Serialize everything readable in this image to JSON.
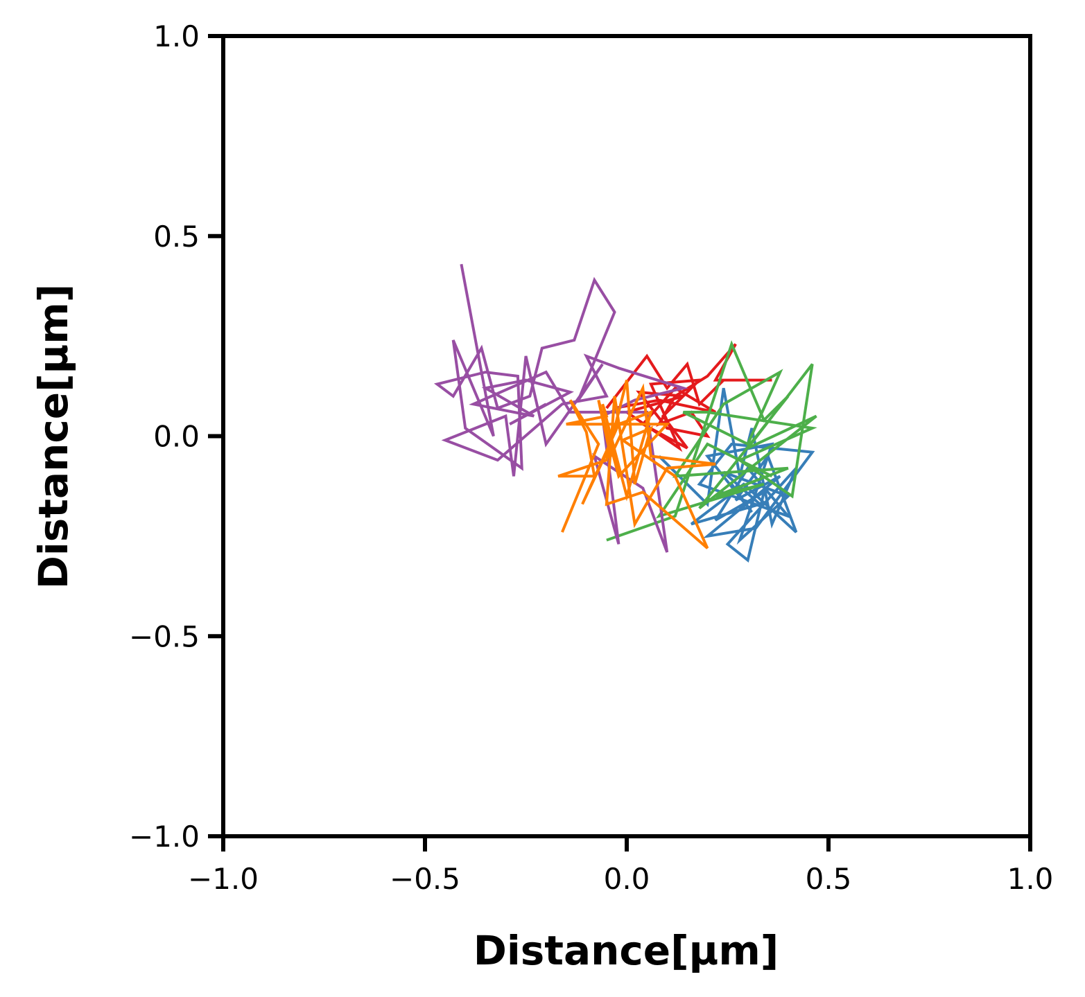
{
  "chart_data": {
    "type": "line",
    "title": "",
    "xlabel": "Distance[µm]",
    "ylabel": "Distance[µm]",
    "xlim": [
      -1.0,
      1.0
    ],
    "ylim": [
      -1.0,
      1.0
    ],
    "xticks": [
      -1.0,
      -0.5,
      0.0,
      0.5,
      1.0
    ],
    "yticks": [
      -1.0,
      -0.5,
      0.0,
      0.5,
      1.0
    ],
    "xtick_labels": [
      "−1.0",
      "−0.5",
      "0.0",
      "0.5",
      "1.0"
    ],
    "ytick_labels": [
      "−1.0",
      "−0.5",
      "0.0",
      "0.5",
      "1.0"
    ],
    "grid": false,
    "legend": "none",
    "series": [
      {
        "color": "#e41a1c",
        "points": [
          [
            -0.05,
            0.07
          ],
          [
            0.05,
            0.2
          ],
          [
            0.1,
            0.12
          ],
          [
            0.15,
            0.18
          ],
          [
            0.18,
            0.08
          ],
          [
            0.24,
            0.14
          ],
          [
            0.36,
            0.14
          ],
          [
            0.22,
            0.14
          ],
          [
            0.27,
            0.23
          ],
          [
            0.2,
            0.15
          ],
          [
            0.12,
            0.1
          ],
          [
            0.08,
            0.03
          ],
          [
            0.16,
            0.06
          ],
          [
            0.2,
            0.0
          ],
          [
            0.1,
            0.02
          ],
          [
            0.03,
            0.11
          ],
          [
            0.14,
            0.1
          ],
          [
            0.0,
            0.06
          ],
          [
            0.13,
            -0.03
          ],
          [
            0.06,
            0.13
          ],
          [
            0.18,
            0.14
          ],
          [
            0.09,
            0.05
          ],
          [
            0.15,
            -0.03
          ],
          [
            0.04,
            0.03
          ],
          [
            0.12,
            0.12
          ],
          [
            0.22,
            0.06
          ],
          [
            0.08,
            0.09
          ],
          [
            -0.03,
            0.07
          ]
        ]
      },
      {
        "color": "#377eb8",
        "points": [
          [
            0.08,
            -0.05
          ],
          [
            0.2,
            -0.17
          ],
          [
            0.24,
            0.12
          ],
          [
            0.28,
            -0.1
          ],
          [
            0.31,
            0.02
          ],
          [
            0.36,
            -0.22
          ],
          [
            0.42,
            -0.08
          ],
          [
            0.25,
            -0.27
          ],
          [
            0.3,
            -0.31
          ],
          [
            0.34,
            -0.14
          ],
          [
            0.22,
            -0.21
          ],
          [
            0.3,
            -0.08
          ],
          [
            0.4,
            -0.2
          ],
          [
            0.18,
            -0.12
          ],
          [
            0.26,
            -0.02
          ],
          [
            0.46,
            -0.04
          ],
          [
            0.32,
            -0.23
          ],
          [
            0.2,
            -0.25
          ],
          [
            0.38,
            -0.1
          ],
          [
            0.27,
            -0.16
          ],
          [
            0.35,
            -0.05
          ],
          [
            0.42,
            -0.24
          ],
          [
            0.29,
            -0.12
          ],
          [
            0.16,
            -0.22
          ],
          [
            0.33,
            -0.17
          ],
          [
            0.24,
            -0.09
          ],
          [
            0.4,
            -0.15
          ],
          [
            0.28,
            -0.26
          ],
          [
            0.36,
            -0.02
          ],
          [
            0.2,
            -0.05
          ],
          [
            0.31,
            -0.19
          ],
          [
            0.26,
            -0.12
          ]
        ]
      },
      {
        "color": "#4daf4a",
        "points": [
          [
            -0.05,
            -0.26
          ],
          [
            0.12,
            -0.2
          ],
          [
            0.26,
            0.23
          ],
          [
            0.34,
            0.04
          ],
          [
            0.4,
            0.1
          ],
          [
            0.18,
            -0.18
          ],
          [
            0.47,
            0.05
          ],
          [
            0.3,
            -0.03
          ],
          [
            0.46,
            0.18
          ],
          [
            0.41,
            -0.15
          ],
          [
            0.28,
            -0.06
          ],
          [
            0.46,
            0.02
          ],
          [
            0.2,
            0.06
          ],
          [
            0.14,
            0.06
          ],
          [
            0.3,
            -0.02
          ],
          [
            0.38,
            0.16
          ],
          [
            0.24,
            0.08
          ],
          [
            0.12,
            -0.1
          ],
          [
            0.4,
            -0.08
          ],
          [
            0.22,
            -0.15
          ],
          [
            0.34,
            -0.12
          ],
          [
            0.08,
            -0.2
          ],
          [
            0.2,
            -0.02
          ],
          [
            0.36,
            -0.1
          ]
        ]
      },
      {
        "color": "#984ea3",
        "points": [
          [
            -0.41,
            0.43
          ],
          [
            -0.36,
            0.16
          ],
          [
            -0.33,
            0.0
          ],
          [
            -0.43,
            0.24
          ],
          [
            -0.4,
            0.02
          ],
          [
            -0.26,
            -0.08
          ],
          [
            -0.27,
            0.15
          ],
          [
            -0.35,
            0.16
          ],
          [
            -0.47,
            0.13
          ],
          [
            -0.43,
            0.1
          ],
          [
            -0.36,
            0.22
          ],
          [
            -0.32,
            0.07
          ],
          [
            -0.24,
            0.1
          ],
          [
            -0.21,
            0.22
          ],
          [
            -0.13,
            0.24
          ],
          [
            -0.08,
            0.39
          ],
          [
            -0.03,
            0.31
          ],
          [
            -0.12,
            0.09
          ],
          [
            -0.06,
            0.18
          ],
          [
            -0.2,
            -0.02
          ],
          [
            -0.25,
            0.2
          ],
          [
            -0.28,
            -0.1
          ],
          [
            -0.3,
            0.05
          ],
          [
            -0.45,
            -0.01
          ],
          [
            -0.32,
            -0.06
          ],
          [
            -0.16,
            0.08
          ],
          [
            -0.05,
            0.1
          ],
          [
            -0.1,
            0.2
          ],
          [
            -0.02,
            0.17
          ],
          [
            0.14,
            0.12
          ],
          [
            0.02,
            0.09
          ],
          [
            -0.06,
            0.05
          ],
          [
            -0.02,
            -0.27
          ],
          [
            -0.08,
            -0.05
          ],
          [
            0.04,
            -0.13
          ],
          [
            0.1,
            -0.29
          ],
          [
            0.05,
            0.06
          ],
          [
            -0.14,
            0.06
          ],
          [
            -0.2,
            0.16
          ],
          [
            -0.38,
            0.08
          ],
          [
            -0.23,
            0.05
          ],
          [
            -0.35,
            0.12
          ],
          [
            -0.25,
            0.14
          ],
          [
            -0.14,
            0.11
          ],
          [
            -0.29,
            0.03
          ],
          [
            -0.2,
            0.08
          ]
        ]
      },
      {
        "color": "#ff7f00",
        "points": [
          [
            -0.16,
            -0.24
          ],
          [
            -0.07,
            -0.02
          ],
          [
            -0.14,
            0.09
          ],
          [
            -0.1,
            0.01
          ],
          [
            -0.08,
            -0.1
          ],
          [
            -0.17,
            -0.1
          ],
          [
            -0.05,
            -0.06
          ],
          [
            0.0,
            0.14
          ],
          [
            0.02,
            -0.12
          ],
          [
            0.06,
            0.02
          ],
          [
            -0.01,
            -0.01
          ],
          [
            0.12,
            -0.1
          ],
          [
            0.2,
            -0.28
          ],
          [
            0.04,
            -0.14
          ],
          [
            -0.05,
            -0.17
          ],
          [
            -0.03,
            0.1
          ],
          [
            0.02,
            -0.22
          ],
          [
            0.1,
            -0.08
          ],
          [
            0.22,
            -0.07
          ],
          [
            0.06,
            -0.05
          ],
          [
            0.04,
            0.12
          ],
          [
            -0.04,
            -0.05
          ],
          [
            -0.07,
            0.09
          ],
          [
            -0.02,
            -0.1
          ],
          [
            0.1,
            0.03
          ],
          [
            -0.15,
            0.03
          ],
          [
            -0.05,
            0.05
          ],
          [
            -0.06,
            0.08
          ],
          [
            0.0,
            -0.15
          ],
          [
            0.06,
            0.06
          ],
          [
            -0.02,
            0.03
          ],
          [
            -0.11,
            -0.17
          ],
          [
            -0.04,
            -0.02
          ]
        ]
      }
    ]
  }
}
